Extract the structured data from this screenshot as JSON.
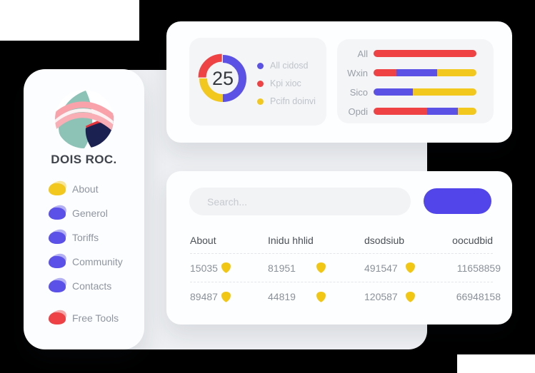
{
  "brand": {
    "name": "DOIS ROC."
  },
  "colors": {
    "indigo": "#5246EA",
    "red": "#EE4245",
    "yellow": "#F2C71E",
    "panel": "#EDEFF2",
    "inner_card": "#F4F5F7",
    "canvas": "#000000"
  },
  "sidebar": {
    "items": [
      {
        "label": "About",
        "color": "#F2C71E",
        "group": "main"
      },
      {
        "label": "Generol",
        "color": "#5B51E8",
        "group": "main"
      },
      {
        "label": "Toriffs",
        "color": "#5B51E8",
        "group": "main"
      },
      {
        "label": "Community",
        "color": "#5B51E8",
        "group": "main"
      },
      {
        "label": "Contacts",
        "color": "#5B51E8",
        "group": "main"
      },
      {
        "label": "Free Tools",
        "color": "#EE4145",
        "group": "secondary"
      }
    ]
  },
  "search": {
    "placeholder": "Search..."
  },
  "chart_data": [
    {
      "type": "pie",
      "title": "",
      "labels": [
        "All cidosd",
        "Kpi xioc",
        "Pcifn doinvi"
      ],
      "values": [
        50,
        25,
        25
      ],
      "colors": [
        "#5B51E4",
        "#EE4245",
        "#F2C71E"
      ],
      "center_label": "25",
      "legend_position": "right",
      "donut": true,
      "exploded_index": 1,
      "draw_order": [
        0,
        2,
        1
      ]
    },
    {
      "type": "bar",
      "orientation": "horizontal",
      "stacked": true,
      "categories": [
        "All",
        "Wxin",
        "Sico",
        "Opdi"
      ],
      "series": [
        {
          "name": "red",
          "color": "#EE4245",
          "values": [
            100,
            22,
            0,
            52
          ]
        },
        {
          "name": "indigo",
          "color": "#5B51E4",
          "values": [
            0,
            40,
            38,
            30
          ]
        },
        {
          "name": "yellow",
          "color": "#F2C71E",
          "values": [
            0,
            38,
            62,
            18
          ]
        }
      ],
      "xlim": [
        0,
        100
      ],
      "grid": false,
      "legend_position": "none"
    }
  ],
  "table": {
    "headers": [
      "About",
      "Inidu hhlid",
      "dsodsiub",
      "oocudbid"
    ],
    "rows": [
      {
        "cells": [
          {
            "value": "15035",
            "icon": "shield"
          },
          {
            "value": "81951",
            "icon": "shield"
          },
          {
            "value": "491547",
            "icon": "shield"
          },
          {
            "value": "11658859"
          }
        ]
      },
      {
        "cells": [
          {
            "value": "89487",
            "icon": "shield"
          },
          {
            "value": "44819",
            "icon": "shield"
          },
          {
            "value": "120587",
            "icon": "shield"
          },
          {
            "value": "66948158"
          }
        ]
      }
    ]
  }
}
